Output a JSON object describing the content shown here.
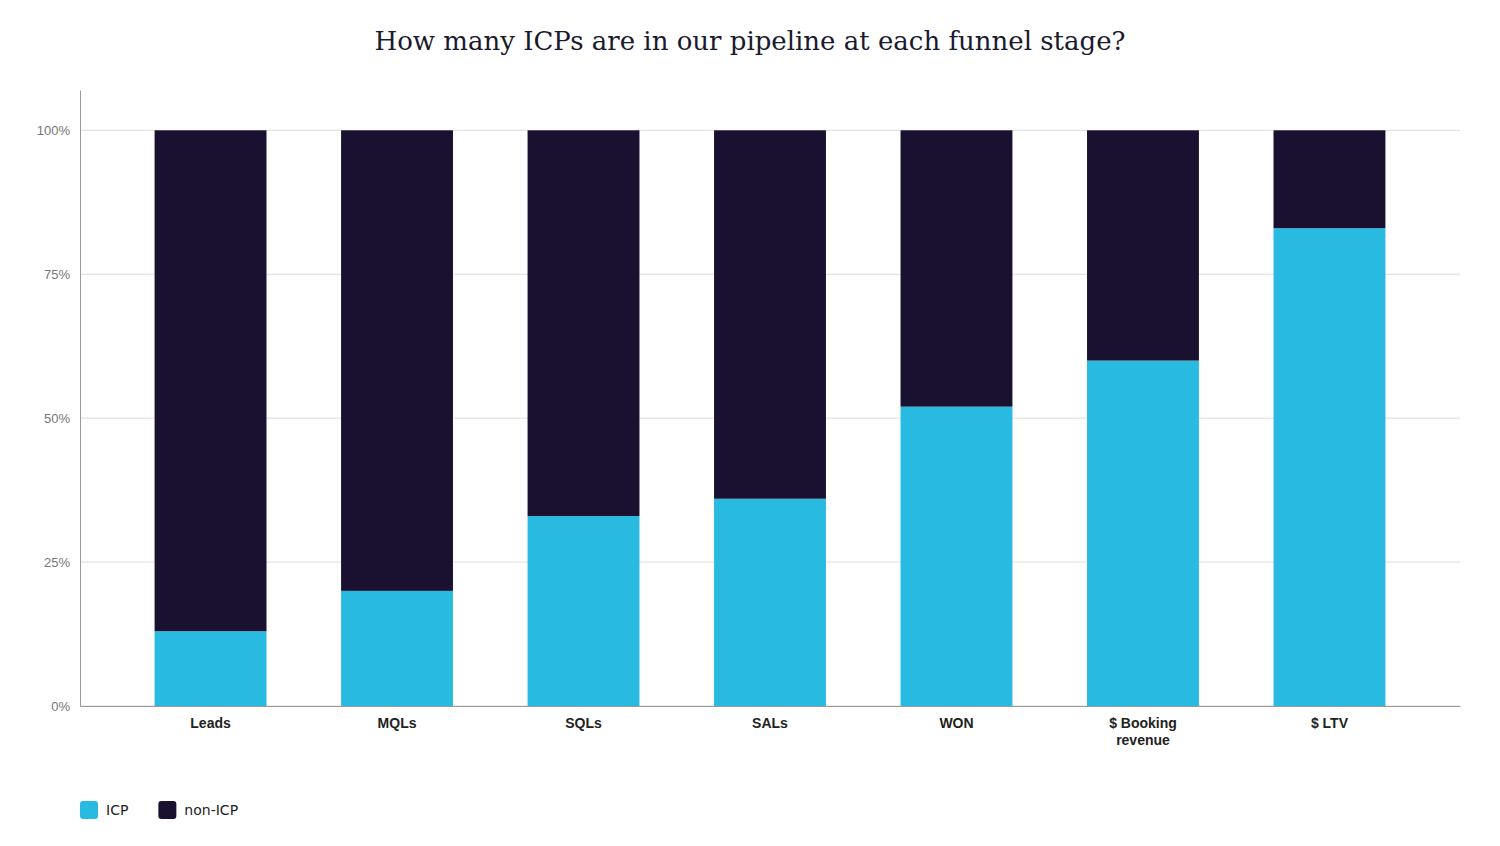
{
  "chart_data": {
    "type": "bar",
    "title": "How many ICPs are in our pipeline at each funnel stage?",
    "categories": [
      "Leads",
      "MQLs",
      "SQLs",
      "SALs",
      "WON",
      "$ Booking\nrevenue",
      "$ LTV"
    ],
    "series": [
      {
        "name": "ICP",
        "color": "#29BAE2",
        "values": [
          13,
          20,
          33,
          36,
          52,
          60,
          83
        ]
      },
      {
        "name": "non-ICP",
        "color": "#1A1030",
        "values": [
          87,
          80,
          67,
          64,
          48,
          40,
          17
        ]
      }
    ],
    "stacked": true,
    "ylim": [
      0,
      107
    ],
    "yticks": [
      {
        "value": 0,
        "label": "0%"
      },
      {
        "value": 25,
        "label": "25%"
      },
      {
        "value": 50,
        "label": "50%"
      },
      {
        "value": 75,
        "label": "75%"
      },
      {
        "value": 100,
        "label": "100%"
      }
    ],
    "grid": true,
    "legend": "lower left"
  }
}
